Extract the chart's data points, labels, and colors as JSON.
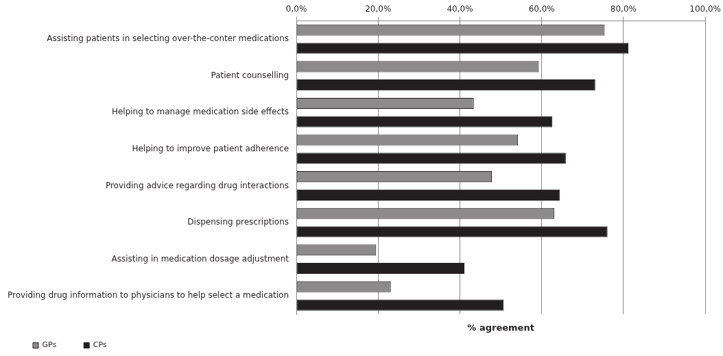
{
  "chart_data": {
    "type": "bar",
    "orientation": "horizontal",
    "xlabel": "% agreement",
    "categories": [
      "Assisting patients in selecting over-the-conter medications",
      "Patient counselling",
      "Helping to manage medication side effects",
      "Helping to improve patient adherence",
      "Providing advice regarding drug interactions",
      "Dispensing prescriptions",
      "Assisting in medication dosage adjustment",
      "Providing drug information to physicians to help select a medication"
    ],
    "series": [
      {
        "name": "GPs",
        "color": "#8c8a8b",
        "values": [
          75.4,
          59.3,
          43.4,
          54.2,
          47.8,
          63.1,
          19.5,
          23.1
        ]
      },
      {
        "name": "CPs",
        "color": "#231f20",
        "values": [
          81.2,
          73.1,
          62.6,
          65.9,
          64.4,
          76.1,
          41.1,
          50.7
        ]
      }
    ],
    "xlim": [
      0,
      100
    ],
    "xticks": [
      {
        "value": 0,
        "label": "0,0%"
      },
      {
        "value": 20,
        "label": "20,0%"
      },
      {
        "value": 40,
        "label": "40,0%"
      },
      {
        "value": 60,
        "label": "60,0%"
      },
      {
        "value": 80,
        "label": "80,0%"
      },
      {
        "value": 100,
        "label": "100,0%"
      }
    ],
    "grid": "x",
    "legend": "bottom"
  }
}
